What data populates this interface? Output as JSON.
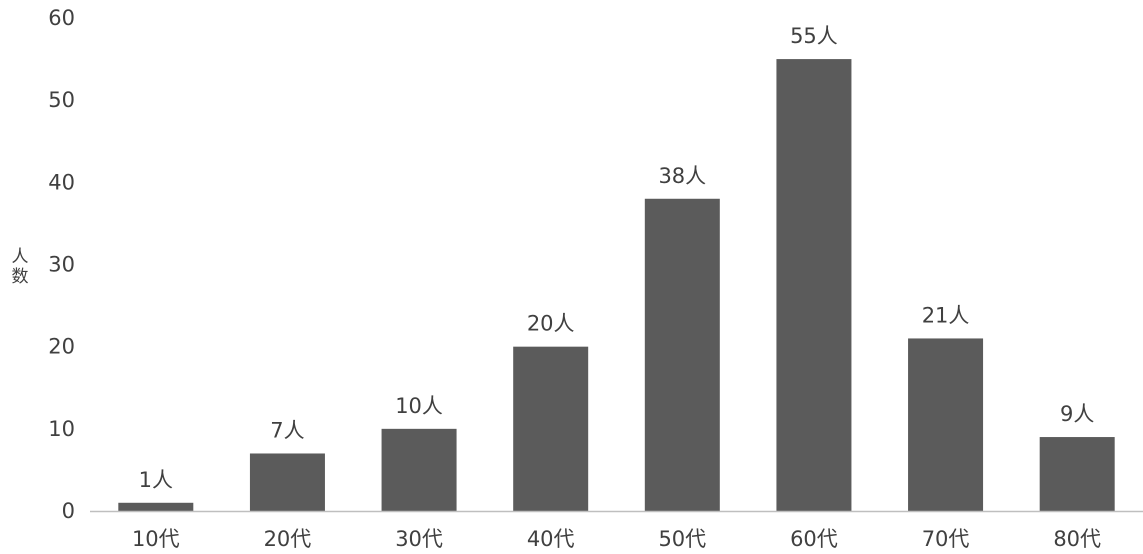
{
  "chart_data": {
    "type": "bar",
    "categories": [
      "10代",
      "20代",
      "30代",
      "40代",
      "50代",
      "60代",
      "70代",
      "80代"
    ],
    "values": [
      1,
      7,
      10,
      20,
      38,
      55,
      21,
      9
    ],
    "data_labels": [
      "1人",
      "7人",
      "10人",
      "20人",
      "38人",
      "55人",
      "21人",
      "9人"
    ],
    "title": "",
    "xlabel": "",
    "ylabel": "人数",
    "ylabel_chars": [
      "人",
      "数"
    ],
    "ylim": [
      0,
      60
    ],
    "yticks": [
      0,
      10,
      20,
      30,
      40,
      50,
      60
    ],
    "grid": false,
    "legend": "none",
    "bar_color": "#5b5b5b",
    "axis_color": "#bfbfbf",
    "text_color": "#404040"
  }
}
